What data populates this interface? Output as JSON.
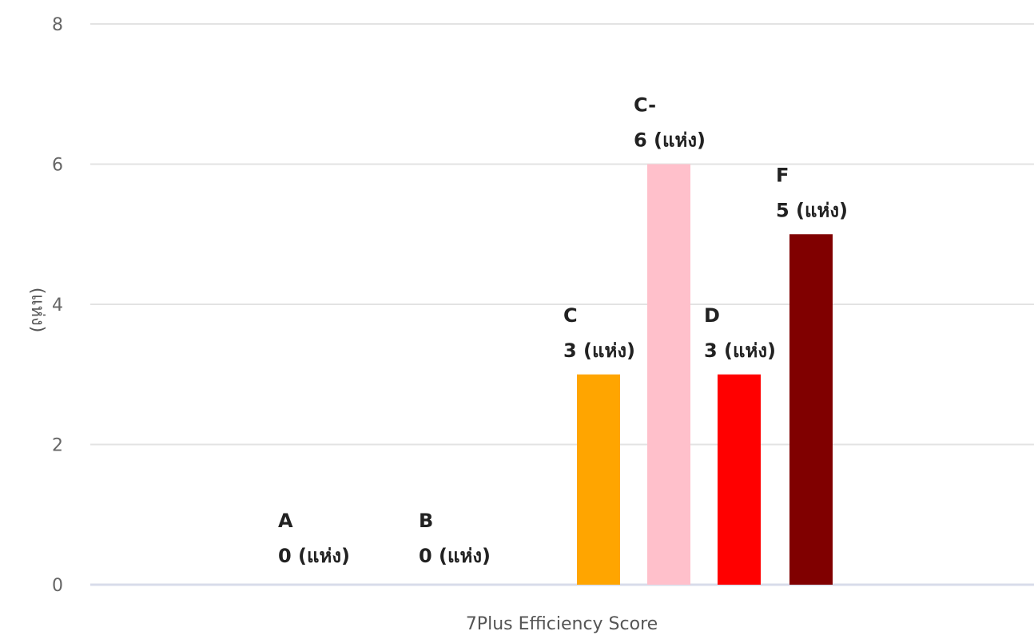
{
  "chart_data": {
    "type": "bar",
    "title": "",
    "xlabel": "7Plus Efficiency Score",
    "ylabel": "(แห่ง)",
    "ylim": [
      0,
      8
    ],
    "yticks": [
      "0",
      "2",
      "4",
      "6",
      "8"
    ],
    "grid": true,
    "legend": "none",
    "categories": [
      "A",
      "B",
      "C",
      "C-",
      "D",
      "F"
    ],
    "values": [
      0,
      0,
      3,
      6,
      3,
      5
    ],
    "value_labels": [
      "0 (แห่ง)",
      "0 (แห่ง)",
      "3 (แห่ง)",
      "6 (แห่ง)",
      "3 (แห่ง)",
      "5 (แห่ง)"
    ],
    "colors": [
      "#ffa500",
      "#ffa500",
      "#ffa500",
      "#ffc0cb",
      "#ff0000",
      "#800000"
    ]
  }
}
